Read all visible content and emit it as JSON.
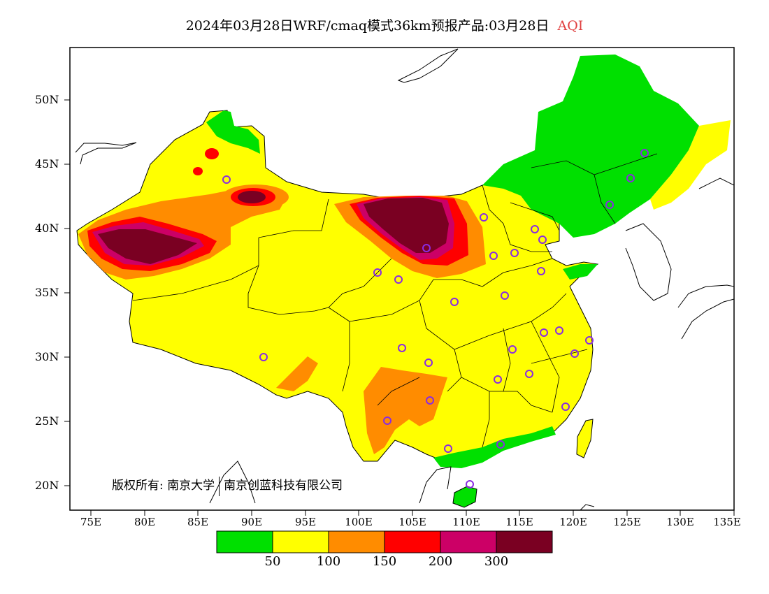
{
  "title": {
    "main": "2024年03月28日WRF/cmaq模式36km预报产品:03月28日",
    "variable": "AQI"
  },
  "axes": {
    "lat_labels": [
      "50N",
      "45N",
      "40N",
      "35N",
      "30N",
      "25N",
      "20N"
    ],
    "lon_labels": [
      "75E",
      "80E",
      "85E",
      "90E",
      "95E",
      "100E",
      "105E",
      "110E",
      "115E",
      "120E",
      "125E",
      "130E",
      "135E"
    ]
  },
  "copyright": {
    "label": "版权所有:",
    "org1": "南京大学",
    "org2": "南京创蓝科技有限公司"
  },
  "legend": {
    "colors": [
      "#00e000",
      "#ffff00",
      "#ff8c00",
      "#ff0000",
      "#cc0066",
      "#7a0022"
    ],
    "labels": [
      "50",
      "100",
      "150",
      "200",
      "300"
    ]
  },
  "map_colors": {
    "good": "#00e000",
    "moderate": "#ffff00",
    "unhealthy_sensitive": "#ff8c00",
    "unhealthy": "#ff0000",
    "very_unhealthy": "#cc0066",
    "hazardous": "#7a0022",
    "station_marker": "#8a2be2"
  }
}
